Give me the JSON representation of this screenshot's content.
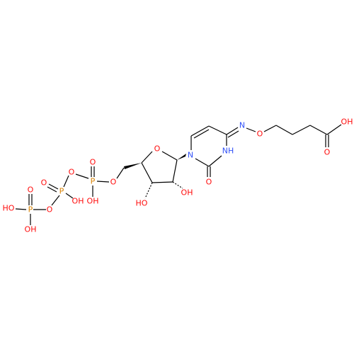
{
  "nodes": [
    {
      "label": "O"
    },
    {
      "label": "N"
    },
    {
      "label": "NH"
    },
    {
      "label": "O"
    },
    {
      "label": "N"
    },
    {
      "label": "O"
    },
    {
      "label": "OH"
    },
    {
      "label": "O"
    },
    {
      "label": "OH"
    },
    {
      "label": "HO"
    },
    {
      "label": "O"
    },
    {
      "label": "P"
    },
    {
      "label": "O"
    },
    {
      "label": "OH"
    },
    {
      "label": "O"
    },
    {
      "label": "P"
    },
    {
      "label": "O"
    },
    {
      "label": "OH"
    },
    {
      "label": "O"
    },
    {
      "label": "P"
    },
    {
      "label": "O"
    },
    {
      "label": "HO"
    },
    {
      "label": "OH"
    }
  ]
}
